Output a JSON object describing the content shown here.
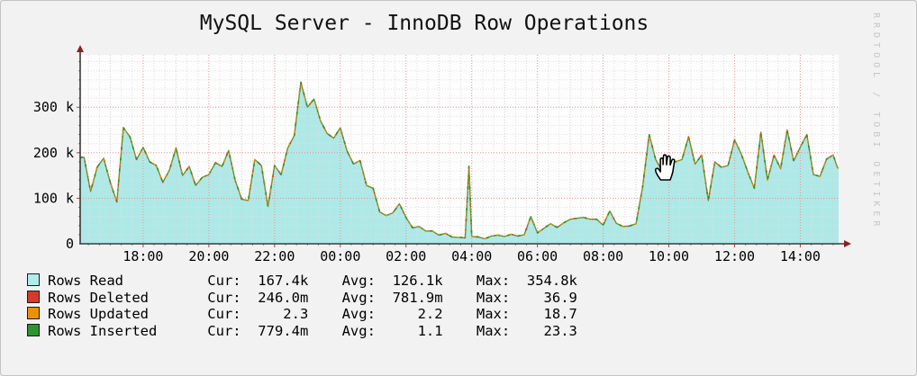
{
  "window": {
    "background": "#f2f2f2",
    "border": "#c3c3c3"
  },
  "watermark": "RRDTOOL / TOBI OETIKER",
  "chart_data": {
    "type": "area",
    "title": "MySQL Server - InnoDB Row Operations",
    "xlabel": "",
    "ylabel": "",
    "x_axis": {
      "start": "16:05",
      "end": "15:10",
      "major_grid_minutes": 120,
      "minor_grid_minutes": 20
    },
    "x_ticks": [
      "18:00",
      "20:00",
      "22:00",
      "00:00",
      "02:00",
      "04:00",
      "06:00",
      "08:00",
      "10:00",
      "12:00",
      "14:00"
    ],
    "y_axis": {
      "max_k": 415,
      "major_grid_k": 100,
      "minor_grid_k": 20
    },
    "y_ticks": [
      {
        "value_k": 0,
        "label": "0"
      },
      {
        "value_k": 100,
        "label": "100 k"
      },
      {
        "value_k": 200,
        "label": "200 k"
      },
      {
        "value_k": 300,
        "label": "300 k"
      }
    ],
    "grid": {
      "minor_color": "#dedede",
      "hour_color": "#cfcfcf",
      "major_color": "#e89898"
    },
    "axis_color": "#3a3a3a",
    "arrow_color": "#8b2020",
    "legend_position": "bottom-left",
    "series": [
      {
        "name": "Rows Read",
        "style": "area",
        "color": "#aee9e7",
        "cur": "167.4k",
        "avg": "126.1k",
        "max": "354.8k",
        "points_time_value_k": [
          [
            "16:12",
            190
          ],
          [
            "16:24",
            115
          ],
          [
            "16:36",
            168
          ],
          [
            "16:48",
            188
          ],
          [
            "17:00",
            135
          ],
          [
            "17:12",
            92
          ],
          [
            "17:24",
            255
          ],
          [
            "17:36",
            235
          ],
          [
            "17:48",
            185
          ],
          [
            "18:00",
            212
          ],
          [
            "18:12",
            180
          ],
          [
            "18:24",
            172
          ],
          [
            "18:36",
            135
          ],
          [
            "18:48",
            162
          ],
          [
            "19:00",
            210
          ],
          [
            "19:12",
            150
          ],
          [
            "19:24",
            170
          ],
          [
            "19:36",
            128
          ],
          [
            "19:48",
            146
          ],
          [
            "20:00",
            152
          ],
          [
            "20:12",
            178
          ],
          [
            "20:24",
            170
          ],
          [
            "20:36",
            205
          ],
          [
            "20:48",
            140
          ],
          [
            "21:00",
            98
          ],
          [
            "21:12",
            95
          ],
          [
            "21:24",
            185
          ],
          [
            "21:36",
            172
          ],
          [
            "21:48",
            82
          ],
          [
            "22:00",
            172
          ],
          [
            "22:12",
            152
          ],
          [
            "22:24",
            210
          ],
          [
            "22:36",
            238
          ],
          [
            "22:48",
            355
          ],
          [
            "23:00",
            300
          ],
          [
            "23:12",
            318
          ],
          [
            "23:24",
            270
          ],
          [
            "23:36",
            242
          ],
          [
            "23:48",
            232
          ],
          [
            "00:00",
            255
          ],
          [
            "00:12",
            205
          ],
          [
            "00:24",
            175
          ],
          [
            "00:36",
            183
          ],
          [
            "00:48",
            128
          ],
          [
            "01:00",
            122
          ],
          [
            "01:12",
            70
          ],
          [
            "01:24",
            62
          ],
          [
            "01:36",
            68
          ],
          [
            "01:48",
            88
          ],
          [
            "02:00",
            58
          ],
          [
            "02:12",
            35
          ],
          [
            "02:24",
            38
          ],
          [
            "02:36",
            28
          ],
          [
            "02:48",
            28
          ],
          [
            "03:00",
            19
          ],
          [
            "03:12",
            23
          ],
          [
            "03:24",
            15
          ],
          [
            "03:36",
            14
          ],
          [
            "03:48",
            13
          ],
          [
            "03:55",
            170
          ],
          [
            "04:00",
            16
          ],
          [
            "04:12",
            15
          ],
          [
            "04:24",
            11
          ],
          [
            "04:36",
            17
          ],
          [
            "04:48",
            19
          ],
          [
            "05:00",
            16
          ],
          [
            "05:12",
            21
          ],
          [
            "05:24",
            17
          ],
          [
            "05:36",
            20
          ],
          [
            "05:48",
            60
          ],
          [
            "06:00",
            24
          ],
          [
            "06:12",
            34
          ],
          [
            "06:24",
            44
          ],
          [
            "06:36",
            36
          ],
          [
            "06:48",
            46
          ],
          [
            "07:00",
            54
          ],
          [
            "07:12",
            56
          ],
          [
            "07:24",
            58
          ],
          [
            "07:36",
            54
          ],
          [
            "07:48",
            54
          ],
          [
            "08:00",
            41
          ],
          [
            "08:12",
            72
          ],
          [
            "08:24",
            45
          ],
          [
            "08:36",
            38
          ],
          [
            "08:48",
            39
          ],
          [
            "09:00",
            44
          ],
          [
            "09:12",
            125
          ],
          [
            "09:24",
            240
          ],
          [
            "09:36",
            185
          ],
          [
            "09:48",
            160
          ],
          [
            "10:00",
            175
          ],
          [
            "10:12",
            180
          ],
          [
            "10:24",
            185
          ],
          [
            "10:36",
            235
          ],
          [
            "10:48",
            175
          ],
          [
            "11:00",
            195
          ],
          [
            "11:12",
            95
          ],
          [
            "11:24",
            180
          ],
          [
            "11:36",
            168
          ],
          [
            "11:48",
            172
          ],
          [
            "12:00",
            228
          ],
          [
            "12:12",
            198
          ],
          [
            "12:24",
            158
          ],
          [
            "12:36",
            122
          ],
          [
            "12:48",
            245
          ],
          [
            "13:00",
            140
          ],
          [
            "13:12",
            195
          ],
          [
            "13:24",
            165
          ],
          [
            "13:36",
            250
          ],
          [
            "13:48",
            182
          ],
          [
            "14:00",
            212
          ],
          [
            "14:12",
            240
          ],
          [
            "14:24",
            152
          ],
          [
            "14:36",
            148
          ],
          [
            "14:48",
            186
          ],
          [
            "15:00",
            195
          ],
          [
            "15:08",
            167
          ]
        ]
      },
      {
        "name": "Rows Deleted",
        "style": "line-stacked",
        "color": "#d63b2a",
        "cur": "246.0m",
        "avg": "781.9m",
        "max": "36.9"
      },
      {
        "name": "Rows Updated",
        "style": "line-stacked",
        "color": "#ec9006",
        "cur": "2.3",
        "avg": "2.2",
        "max": "18.7"
      },
      {
        "name": "Rows Inserted",
        "style": "line-stacked",
        "color": "#2e9330",
        "cur": "779.4m",
        "avg": "1.1",
        "max": "23.3"
      }
    ]
  },
  "legend": {
    "cur_label": "Cur: ",
    "avg_label": "Avg: ",
    "max_label": "Max: ",
    "rows": [
      {
        "label": "Rows Read",
        "color": "#aeedeb",
        "cur": "167.4k",
        "avg": "126.1k",
        "max": "354.8k"
      },
      {
        "label": "Rows Deleted",
        "color": "#d63b2a",
        "cur": "246.0m",
        "avg": "781.9m",
        "max": "36.9"
      },
      {
        "label": "Rows Updated",
        "color": "#ec9006",
        "cur": "2.3",
        "avg": "2.2",
        "max": "18.7"
      },
      {
        "label": "Rows Inserted",
        "color": "#2e9330",
        "cur": "779.4m",
        "avg": "1.1",
        "max": "23.3"
      }
    ]
  }
}
